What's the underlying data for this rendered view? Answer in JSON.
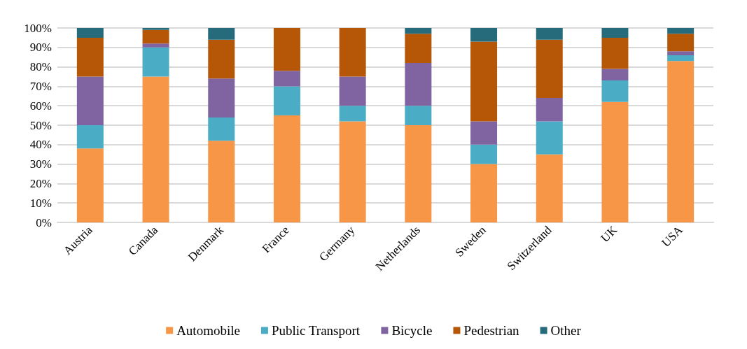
{
  "chart_data": {
    "type": "bar",
    "stacked": true,
    "categories": [
      "Austria",
      "Canada",
      "Denmark",
      "France",
      "Germany",
      "Netherlands",
      "Sweden",
      "Switzerland",
      "UK",
      "USA"
    ],
    "series": [
      {
        "name": "Automobile",
        "color": "#f79646",
        "values": [
          38,
          75,
          42,
          55,
          52,
          50,
          30,
          35,
          62,
          83
        ]
      },
      {
        "name": "Public Transport",
        "color": "#4bacc6",
        "values": [
          12,
          15,
          12,
          15,
          8,
          10,
          10,
          17,
          11,
          3
        ]
      },
      {
        "name": "Bicycle",
        "color": "#8064a2",
        "values": [
          25,
          2,
          20,
          8,
          15,
          22,
          12,
          12,
          6,
          2
        ]
      },
      {
        "name": "Pedestrian",
        "color": "#b65708",
        "values": [
          20,
          7,
          20,
          22,
          25,
          15,
          41,
          30,
          16,
          9
        ]
      },
      {
        "name": "Other",
        "color": "#256b7c",
        "values": [
          5,
          1,
          6,
          0,
          0,
          3,
          7,
          6,
          5,
          3
        ]
      }
    ],
    "ylim": [
      0,
      100
    ],
    "yticks": [
      {
        "value": 0,
        "label": "0%"
      },
      {
        "value": 10,
        "label": "10%"
      },
      {
        "value": 20,
        "label": "20%"
      },
      {
        "value": 30,
        "label": "30%"
      },
      {
        "value": 40,
        "label": "40%"
      },
      {
        "value": 50,
        "label": "50%"
      },
      {
        "value": 60,
        "label": "60%"
      },
      {
        "value": 70,
        "label": "70%"
      },
      {
        "value": 80,
        "label": "80%"
      },
      {
        "value": 90,
        "label": "90%"
      },
      {
        "value": 100,
        "label": "100%"
      }
    ],
    "grid": "y",
    "legend": "bottom"
  }
}
